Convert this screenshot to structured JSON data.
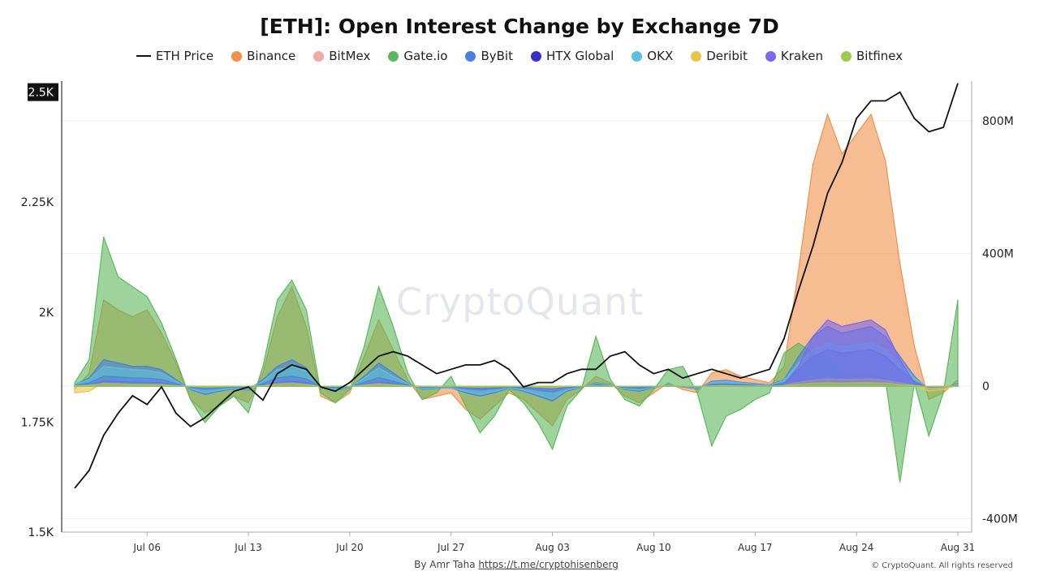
{
  "chart_data": {
    "type": "area",
    "title": "[ETH]: Open Interest Change by Exchange 7D",
    "x": [
      "2025-07-01",
      "2025-07-02",
      "2025-07-03",
      "2025-07-04",
      "2025-07-05",
      "2025-07-06",
      "2025-07-07",
      "2025-07-08",
      "2025-07-09",
      "2025-07-10",
      "2025-07-11",
      "2025-07-12",
      "2025-07-13",
      "2025-07-14",
      "2025-07-15",
      "2025-07-16",
      "2025-07-17",
      "2025-07-18",
      "2025-07-19",
      "2025-07-20",
      "2025-07-21",
      "2025-07-22",
      "2025-07-23",
      "2025-07-24",
      "2025-07-25",
      "2025-07-26",
      "2025-07-27",
      "2025-07-28",
      "2025-07-29",
      "2025-07-30",
      "2025-07-31",
      "2025-08-01",
      "2025-08-02",
      "2025-08-03",
      "2025-08-04",
      "2025-08-05",
      "2025-08-06",
      "2025-08-07",
      "2025-08-08",
      "2025-08-09",
      "2025-08-10",
      "2025-08-11",
      "2025-08-12",
      "2025-08-13",
      "2025-08-14",
      "2025-08-15",
      "2025-08-16",
      "2025-08-17",
      "2025-08-18",
      "2025-08-19",
      "2025-08-20",
      "2025-08-21",
      "2025-08-22",
      "2025-08-23",
      "2025-08-24",
      "2025-08-25",
      "2025-08-26",
      "2025-08-27",
      "2025-08-28",
      "2025-08-29",
      "2025-08-30",
      "2025-08-31"
    ],
    "x_tick_labels": [
      "Jul 06",
      "Jul 13",
      "Jul 20",
      "Jul 27",
      "Aug 03",
      "Aug 10",
      "Aug 17",
      "Aug 24",
      "Aug 31"
    ],
    "y_left": {
      "ticks": [
        "1.5K",
        "1.75K",
        "2K",
        "2.25K",
        "2.5K"
      ],
      "range": [
        1500,
        2525
      ],
      "highlight": "2.5K"
    },
    "y_right": {
      "ticks": [
        "-400M",
        "0",
        "400M",
        "800M"
      ],
      "range": [
        -440000000,
        920000000
      ]
    },
    "grid": true,
    "legend_position": "top-center",
    "series": [
      {
        "name": "ETH Price",
        "axis": "left",
        "color": "#111111",
        "kind": "line",
        "values": [
          1600,
          1640,
          1720,
          1770,
          1810,
          1790,
          1830,
          1770,
          1740,
          1760,
          1790,
          1820,
          1830,
          1800,
          1860,
          1880,
          1870,
          1830,
          1820,
          1840,
          1870,
          1900,
          1910,
          1900,
          1880,
          1860,
          1870,
          1880,
          1880,
          1890,
          1870,
          1830,
          1840,
          1840,
          1860,
          1870,
          1870,
          1900,
          1910,
          1880,
          1860,
          1870,
          1850,
          1860,
          1870,
          1860,
          1850,
          1860,
          1870,
          1940,
          2050,
          2150,
          2270,
          2340,
          2440,
          2480,
          2480,
          2500,
          2440,
          2410,
          2420,
          2520
        ]
      },
      {
        "name": "Binance",
        "axis": "right",
        "color": "#f0914a",
        "values": [
          -10000000,
          40000000,
          260000000,
          230000000,
          210000000,
          230000000,
          160000000,
          70000000,
          -40000000,
          -80000000,
          -60000000,
          -30000000,
          -50000000,
          40000000,
          210000000,
          300000000,
          180000000,
          -30000000,
          -50000000,
          -20000000,
          90000000,
          200000000,
          110000000,
          20000000,
          -40000000,
          -30000000,
          -20000000,
          -70000000,
          -100000000,
          -60000000,
          -20000000,
          -40000000,
          -80000000,
          -120000000,
          -40000000,
          -10000000,
          30000000,
          10000000,
          -30000000,
          -50000000,
          -20000000,
          10000000,
          -10000000,
          -20000000,
          40000000,
          50000000,
          30000000,
          20000000,
          10000000,
          60000000,
          350000000,
          670000000,
          820000000,
          700000000,
          760000000,
          820000000,
          680000000,
          370000000,
          120000000,
          -40000000,
          -20000000,
          20000000
        ]
      },
      {
        "name": "BitMex",
        "axis": "right",
        "color": "#f0a9a4",
        "values": [
          5000000,
          10000000,
          8000000,
          6000000,
          5000000,
          5000000,
          4000000,
          2000000,
          0,
          -2000000,
          -2000000,
          -1000000,
          0,
          3000000,
          8000000,
          10000000,
          6000000,
          0,
          -1000000,
          0,
          4000000,
          6000000,
          3000000,
          1000000,
          0,
          0,
          -1000000,
          -3000000,
          -4000000,
          -3000000,
          -2000000,
          -2000000,
          -3000000,
          -4000000,
          -2000000,
          0,
          1000000,
          0,
          -1000000,
          -2000000,
          -1000000,
          0,
          0,
          -1000000,
          1000000,
          2000000,
          1000000,
          1000000,
          0,
          3000000,
          10000000,
          14000000,
          16000000,
          14000000,
          15000000,
          15000000,
          12000000,
          8000000,
          3000000,
          -2000000,
          -1000000,
          1000000
        ]
      },
      {
        "name": "Gate.io",
        "axis": "right",
        "color": "#5cb85c",
        "values": [
          10000000,
          80000000,
          450000000,
          330000000,
          300000000,
          270000000,
          190000000,
          80000000,
          -40000000,
          -110000000,
          -60000000,
          -30000000,
          -80000000,
          60000000,
          260000000,
          320000000,
          230000000,
          -20000000,
          -50000000,
          -10000000,
          120000000,
          300000000,
          180000000,
          40000000,
          -40000000,
          -20000000,
          30000000,
          -60000000,
          -140000000,
          -90000000,
          -10000000,
          -50000000,
          -110000000,
          -190000000,
          -60000000,
          -10000000,
          150000000,
          20000000,
          -40000000,
          -60000000,
          -10000000,
          50000000,
          60000000,
          -20000000,
          -180000000,
          -90000000,
          -70000000,
          -40000000,
          -20000000,
          100000000,
          130000000,
          100000000,
          90000000,
          40000000,
          30000000,
          40000000,
          20000000,
          -290000000,
          10000000,
          -150000000,
          -20000000,
          260000000
        ]
      },
      {
        "name": "ByBit",
        "axis": "right",
        "color": "#4a7fe0",
        "values": [
          5000000,
          25000000,
          80000000,
          70000000,
          60000000,
          60000000,
          50000000,
          20000000,
          -10000000,
          -25000000,
          -15000000,
          -8000000,
          -12000000,
          20000000,
          60000000,
          80000000,
          55000000,
          -5000000,
          -12000000,
          -4000000,
          30000000,
          70000000,
          40000000,
          10000000,
          -10000000,
          -6000000,
          -5000000,
          -20000000,
          -30000000,
          -20000000,
          -6000000,
          -15000000,
          -30000000,
          -45000000,
          -15000000,
          -3000000,
          10000000,
          5000000,
          -10000000,
          -15000000,
          -5000000,
          5000000,
          -3000000,
          -8000000,
          15000000,
          18000000,
          12000000,
          8000000,
          4000000,
          20000000,
          90000000,
          150000000,
          180000000,
          160000000,
          170000000,
          180000000,
          150000000,
          90000000,
          30000000,
          -10000000,
          -6000000,
          8000000
        ]
      },
      {
        "name": "HTX Global",
        "axis": "right",
        "color": "#3b2fc9",
        "values": [
          2000000,
          10000000,
          30000000,
          28000000,
          25000000,
          24000000,
          20000000,
          8000000,
          -4000000,
          -10000000,
          -6000000,
          -3000000,
          -5000000,
          8000000,
          25000000,
          30000000,
          22000000,
          -2000000,
          -5000000,
          -2000000,
          12000000,
          26000000,
          15000000,
          4000000,
          -4000000,
          -3000000,
          -2000000,
          -8000000,
          -12000000,
          -8000000,
          -3000000,
          -6000000,
          -12000000,
          -18000000,
          -6000000,
          -1000000,
          5000000,
          2000000,
          -4000000,
          -6000000,
          -2000000,
          2000000,
          -1000000,
          -3000000,
          6000000,
          7000000,
          5000000,
          3000000,
          2000000,
          10000000,
          50000000,
          90000000,
          110000000,
          100000000,
          105000000,
          110000000,
          90000000,
          50000000,
          15000000,
          -5000000,
          -3000000,
          3000000
        ]
      },
      {
        "name": "OKX",
        "axis": "right",
        "color": "#5bc0de",
        "values": [
          5000000,
          20000000,
          60000000,
          55000000,
          50000000,
          48000000,
          40000000,
          15000000,
          -8000000,
          -20000000,
          -12000000,
          -6000000,
          -10000000,
          15000000,
          50000000,
          60000000,
          45000000,
          -4000000,
          -10000000,
          -3000000,
          25000000,
          55000000,
          30000000,
          8000000,
          -8000000,
          -5000000,
          -4000000,
          -16000000,
          -25000000,
          -16000000,
          -5000000,
          -12000000,
          -25000000,
          -38000000,
          -12000000,
          -2000000,
          8000000,
          4000000,
          -8000000,
          -12000000,
          -4000000,
          4000000,
          -2000000,
          -6000000,
          12000000,
          15000000,
          10000000,
          6000000,
          3000000,
          18000000,
          70000000,
          110000000,
          130000000,
          120000000,
          125000000,
          130000000,
          110000000,
          70000000,
          25000000,
          -8000000,
          -5000000,
          6000000
        ]
      },
      {
        "name": "Deribit",
        "axis": "right",
        "color": "#e8c547",
        "values": [
          -20000000,
          -15000000,
          10000000,
          8000000,
          6000000,
          5000000,
          4000000,
          2000000,
          -2000000,
          -4000000,
          -3000000,
          -1000000,
          -2000000,
          3000000,
          8000000,
          10000000,
          6000000,
          -1000000,
          -2000000,
          -1000000,
          4000000,
          8000000,
          4000000,
          1000000,
          -1000000,
          -1000000,
          -1000000,
          -3000000,
          -4000000,
          -3000000,
          -1000000,
          -2000000,
          -4000000,
          -6000000,
          -2000000,
          0,
          2000000,
          1000000,
          -1000000,
          -2000000,
          -1000000,
          1000000,
          0,
          -1000000,
          2000000,
          3000000,
          2000000,
          1000000,
          1000000,
          4000000,
          12000000,
          18000000,
          22000000,
          20000000,
          21000000,
          22000000,
          18000000,
          10000000,
          3000000,
          -15000000,
          -10000000,
          2000000
        ]
      },
      {
        "name": "Kraken",
        "axis": "right",
        "color": "#7b68ee",
        "values": [
          1000000,
          5000000,
          15000000,
          14000000,
          12000000,
          12000000,
          10000000,
          4000000,
          -2000000,
          -5000000,
          -3000000,
          -2000000,
          -3000000,
          4000000,
          12000000,
          15000000,
          11000000,
          -1000000,
          -3000000,
          -1000000,
          6000000,
          13000000,
          8000000,
          2000000,
          -2000000,
          -2000000,
          -1000000,
          -4000000,
          -6000000,
          -4000000,
          -2000000,
          -3000000,
          -6000000,
          -9000000,
          -3000000,
          -1000000,
          3000000,
          1000000,
          -2000000,
          -3000000,
          -1000000,
          1000000,
          -1000000,
          -2000000,
          3000000,
          4000000,
          3000000,
          2000000,
          1000000,
          5000000,
          60000000,
          150000000,
          200000000,
          180000000,
          190000000,
          200000000,
          170000000,
          80000000,
          10000000,
          -3000000,
          -2000000,
          2000000
        ]
      },
      {
        "name": "Bitfinex",
        "axis": "right",
        "color": "#9acd4c",
        "values": [
          1000000,
          3000000,
          8000000,
          7000000,
          6000000,
          6000000,
          5000000,
          2000000,
          -1000000,
          -3000000,
          -2000000,
          -1000000,
          -1000000,
          2000000,
          6000000,
          8000000,
          5000000,
          0,
          -1000000,
          0,
          3000000,
          7000000,
          4000000,
          1000000,
          -1000000,
          -1000000,
          0,
          -2000000,
          -3000000,
          -2000000,
          -1000000,
          -1000000,
          -3000000,
          -4000000,
          -1000000,
          0,
          1000000,
          1000000,
          -1000000,
          -1000000,
          0,
          1000000,
          0,
          -1000000,
          1000000,
          2000000,
          1000000,
          1000000,
          0,
          2000000,
          6000000,
          9000000,
          10000000,
          9000000,
          10000000,
          10000000,
          9000000,
          5000000,
          2000000,
          -1000000,
          -1000000,
          1000000
        ]
      }
    ]
  },
  "watermark": "CryptoQuant",
  "footer": {
    "credit_prefix": "By Amr Taha ",
    "credit_link": "https://t.me/cryptohisenberg",
    "copyright": "© CryptoQuant. All rights reserved"
  }
}
